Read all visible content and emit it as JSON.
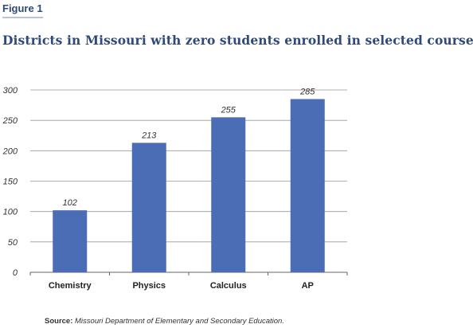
{
  "figure_label": "Figure 1",
  "title": "Districts in Missouri with zero students enrolled in selected courses",
  "source_label": "Source:",
  "source_text": "Missouri Department of Elementary and Secondary Education.",
  "colors": {
    "bar": "#4a6db5",
    "grid": "#999999",
    "title": "#2f4a7a"
  },
  "chart_data": {
    "type": "bar",
    "categories": [
      "Chemistry",
      "Physics",
      "Calculus",
      "AP"
    ],
    "values": [
      102,
      213,
      255,
      285
    ],
    "data_labels": [
      "102",
      "213",
      "255",
      "285"
    ],
    "title": "Districts in Missouri with zero students enrolled in selected courses",
    "xlabel": "",
    "ylabel": "",
    "ylim": [
      0,
      300
    ],
    "yticks": [
      0,
      50,
      100,
      150,
      200,
      250,
      300
    ],
    "grid": true,
    "legend": "none"
  }
}
